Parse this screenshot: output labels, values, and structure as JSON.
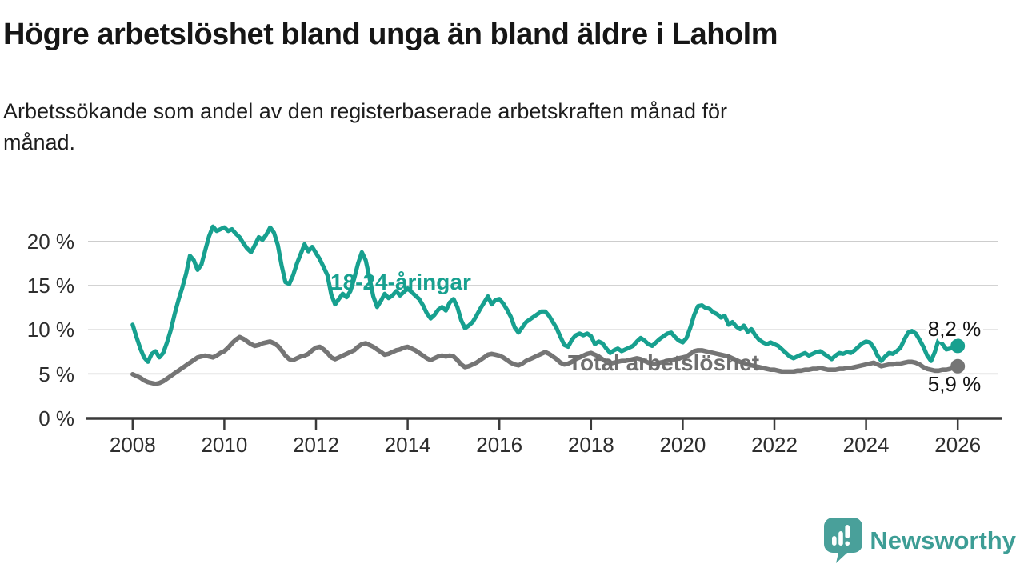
{
  "header": {
    "title": "Högre arbetslöshet bland unga än bland äldre i Laholm",
    "subtitle_lines": [
      "Arbetssökande som andel av den registerbaserade arbetskraften månad för",
      "månad."
    ]
  },
  "chart_data": {
    "type": "line",
    "title": "Högre arbetslöshet bland unga än bland äldre i Laholm",
    "subtitle": "Arbetssökande som andel av den registerbaserade arbetskraften månad för månad.",
    "grid": true,
    "legend": "inline-labels",
    "x_axis": {
      "unit": "year-month",
      "range": [
        2008.0,
        2026.0
      ],
      "tick_labels": [
        "2008",
        "2010",
        "2012",
        "2014",
        "2016",
        "2018",
        "2020",
        "2022",
        "2024",
        "2026"
      ],
      "tick_values": [
        2008,
        2010,
        2012,
        2014,
        2016,
        2018,
        2020,
        2022,
        2024,
        2026
      ]
    },
    "y_axis": {
      "ticks": [
        "0 %",
        "5 %",
        "10 %",
        "15 %",
        "20 %"
      ],
      "tick_values": [
        0,
        5,
        10,
        15,
        20
      ],
      "ylim": [
        0,
        23.5
      ]
    },
    "series": [
      {
        "name": "18-24-åringar",
        "color": "#17a08f",
        "end_label": "8,2 %",
        "end_value": 8.2,
        "start_year": 2008,
        "points_per_year": 12,
        "values": [
          10.6,
          9.2,
          7.9,
          6.9,
          6.4,
          7.3,
          7.6,
          6.9,
          7.4,
          8.6,
          10.0,
          11.8,
          13.4,
          14.8,
          16.4,
          18.4,
          17.9,
          16.8,
          17.4,
          19.0,
          20.6,
          21.7,
          21.2,
          21.4,
          21.6,
          21.2,
          21.4,
          20.9,
          20.5,
          19.8,
          19.2,
          18.8,
          19.6,
          20.5,
          20.2,
          20.8,
          21.6,
          21.0,
          19.6,
          17.3,
          15.4,
          15.2,
          16.2,
          17.5,
          18.6,
          19.7,
          18.9,
          19.4,
          18.7,
          18.0,
          17.1,
          16.2,
          14.0,
          12.9,
          13.5,
          14.1,
          13.7,
          14.4,
          15.8,
          17.5,
          18.8,
          17.9,
          15.9,
          13.8,
          12.6,
          13.3,
          14.1,
          13.6,
          13.9,
          14.4,
          13.9,
          14.3,
          14.7,
          14.3,
          13.9,
          13.5,
          12.8,
          11.9,
          11.3,
          11.7,
          12.3,
          12.6,
          12.2,
          13.1,
          13.5,
          12.6,
          11.1,
          10.2,
          10.5,
          10.9,
          11.6,
          12.4,
          13.1,
          13.8,
          12.9,
          13.4,
          13.5,
          13.0,
          12.3,
          11.5,
          10.3,
          9.7,
          10.3,
          10.9,
          11.2,
          11.5,
          11.8,
          12.1,
          12.1,
          11.6,
          10.9,
          10.2,
          9.2,
          8.3,
          8.1,
          8.9,
          9.4,
          9.6,
          9.4,
          9.6,
          9.3,
          8.4,
          8.7,
          8.5,
          7.9,
          7.4,
          7.7,
          7.9,
          7.6,
          7.8,
          8.0,
          8.2,
          8.7,
          9.1,
          8.8,
          8.4,
          8.2,
          8.6,
          9.0,
          9.3,
          9.6,
          9.7,
          9.2,
          8.8,
          8.6,
          9.1,
          10.3,
          11.7,
          12.7,
          12.8,
          12.5,
          12.4,
          12.0,
          11.8,
          11.4,
          11.6,
          10.6,
          10.9,
          10.4,
          10.1,
          10.5,
          9.8,
          10.1,
          9.4,
          8.9,
          8.6,
          8.4,
          8.6,
          8.4,
          8.2,
          7.8,
          7.4,
          7.0,
          6.8,
          7.0,
          7.2,
          7.4,
          7.1,
          7.3,
          7.5,
          7.6,
          7.3,
          7.0,
          6.7,
          7.1,
          7.4,
          7.3,
          7.5,
          7.4,
          7.7,
          8.1,
          8.5,
          8.7,
          8.6,
          8.0,
          7.1,
          6.5,
          7.0,
          7.4,
          7.3,
          7.6,
          8.0,
          8.9,
          9.7,
          9.9,
          9.6,
          8.9,
          8.1,
          7.1,
          6.5,
          7.5,
          8.9,
          8.4,
          7.8,
          7.9,
          8.0,
          8.2
        ]
      },
      {
        "name": "Total arbetslöshet",
        "color": "#757575",
        "label_color": "#6f6f6f",
        "end_label": "5,9 %",
        "end_value": 5.9,
        "start_year": 2008,
        "points_per_year": 12,
        "values": [
          5.0,
          4.8,
          4.6,
          4.3,
          4.1,
          4.0,
          3.9,
          4.0,
          4.2,
          4.5,
          4.8,
          5.1,
          5.4,
          5.7,
          6.0,
          6.3,
          6.6,
          6.9,
          7.0,
          7.1,
          7.0,
          6.9,
          7.1,
          7.4,
          7.6,
          8.0,
          8.5,
          8.9,
          9.2,
          9.0,
          8.7,
          8.4,
          8.2,
          8.3,
          8.5,
          8.6,
          8.7,
          8.5,
          8.2,
          7.7,
          7.1,
          6.7,
          6.6,
          6.8,
          7.0,
          7.1,
          7.3,
          7.7,
          8.0,
          8.1,
          7.8,
          7.4,
          6.9,
          6.7,
          6.9,
          7.1,
          7.3,
          7.5,
          7.7,
          8.1,
          8.4,
          8.5,
          8.3,
          8.1,
          7.8,
          7.5,
          7.2,
          7.3,
          7.5,
          7.7,
          7.8,
          8.0,
          8.1,
          7.9,
          7.7,
          7.4,
          7.1,
          6.8,
          6.6,
          6.8,
          7.0,
          7.1,
          7.0,
          7.1,
          7.0,
          6.6,
          6.1,
          5.8,
          5.9,
          6.1,
          6.3,
          6.6,
          6.9,
          7.2,
          7.3,
          7.2,
          7.1,
          6.9,
          6.6,
          6.3,
          6.1,
          6.0,
          6.2,
          6.5,
          6.7,
          6.9,
          7.1,
          7.3,
          7.5,
          7.3,
          7.0,
          6.7,
          6.3,
          6.1,
          6.2,
          6.4,
          6.7,
          6.9,
          7.1,
          7.3,
          7.4,
          7.2,
          7.0,
          6.7,
          6.4,
          6.2,
          6.3,
          6.4,
          6.5,
          6.5,
          6.6,
          6.7,
          6.8,
          6.7,
          6.5,
          6.3,
          6.2,
          6.2,
          6.3,
          6.4,
          6.5,
          6.6,
          6.7,
          6.8,
          6.9,
          7.0,
          7.3,
          7.6,
          7.7,
          7.7,
          7.6,
          7.5,
          7.4,
          7.3,
          7.2,
          7.1,
          7.0,
          6.8,
          6.6,
          6.4,
          6.3,
          6.1,
          6.0,
          5.9,
          5.8,
          5.7,
          5.6,
          5.5,
          5.5,
          5.4,
          5.3,
          5.3,
          5.3,
          5.3,
          5.4,
          5.4,
          5.5,
          5.5,
          5.6,
          5.6,
          5.7,
          5.6,
          5.5,
          5.5,
          5.5,
          5.6,
          5.6,
          5.7,
          5.7,
          5.8,
          5.9,
          6.0,
          6.1,
          6.2,
          6.3,
          6.1,
          5.9,
          6.0,
          6.1,
          6.1,
          6.2,
          6.2,
          6.3,
          6.4,
          6.4,
          6.3,
          6.1,
          5.8,
          5.6,
          5.5,
          5.4,
          5.4,
          5.5,
          5.5,
          5.6,
          5.8,
          5.9
        ]
      }
    ]
  },
  "footer": {
    "brand": "Newsworthy",
    "brand_color": "#3d9d95",
    "logo_icon": "speech-bubble-bar-chart-exclamation"
  }
}
